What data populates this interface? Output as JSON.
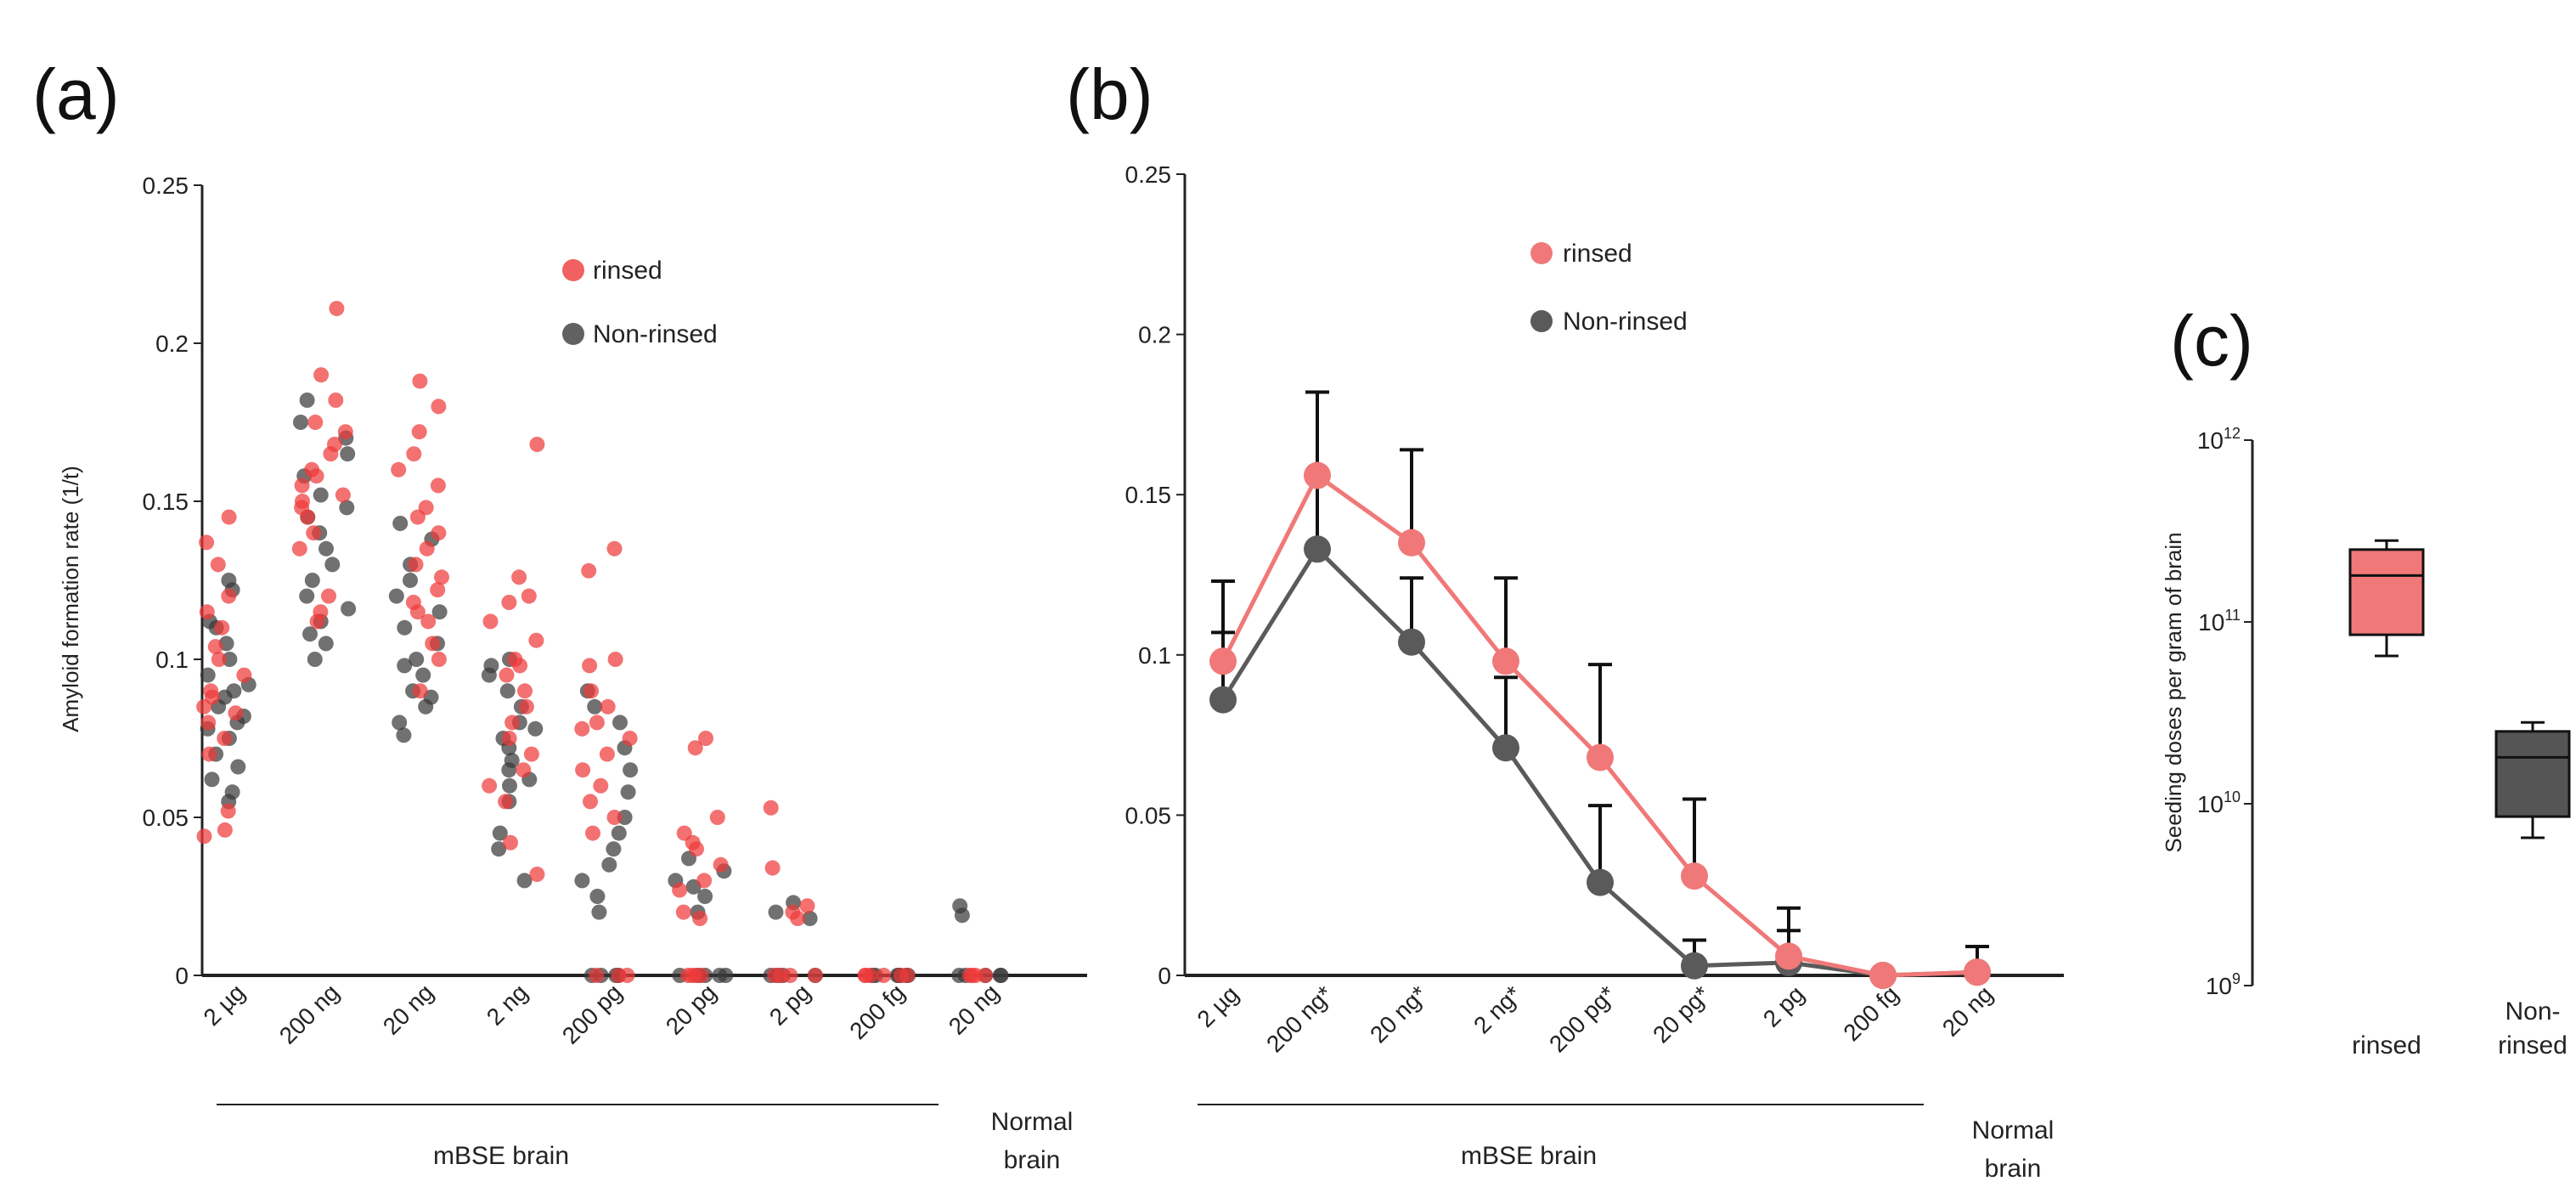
{
  "colors": {
    "rinsed": "#ee3a3a",
    "rinsed_line": "#f07878",
    "nonrinsed": "#3a3a3a",
    "nonrinsed_line": "#5a5a5a",
    "box_rinsed": "#f07878",
    "box_nonrinsed": "#555555"
  },
  "panel_a": {
    "letter": "(a)",
    "ylabel": "Amyloid formation rate (1/t)",
    "yticks": [
      "0",
      "0.05",
      "0.1",
      "0.15",
      "0.2",
      "0.25"
    ],
    "categories": [
      "2 µg",
      "200 ng",
      "20 ng",
      "2 ng",
      "200 pg",
      "20 pg",
      "2 pg",
      "200 fg",
      "20 ng"
    ],
    "group_mbse": "mBSE brain",
    "group_normal_1": "Normal",
    "group_normal_2": "brain",
    "legend": {
      "rinsed": "rinsed",
      "nonrinsed": "Non-rinsed"
    }
  },
  "panel_b": {
    "letter": "(b)",
    "yticks": [
      "0",
      "0.05",
      "0.1",
      "0.15",
      "0.2",
      "0.25"
    ],
    "categories": [
      "2 µg",
      "200 ng*",
      "20 ng*",
      "2 ng*",
      "200 pg*",
      "20 pg*",
      "2 pg",
      "200 fg",
      "20 ng"
    ],
    "group_mbse": "mBSE brain",
    "group_normal_1": "Normal",
    "group_normal_2": "brain",
    "legend": {
      "rinsed": "rinsed",
      "nonrinsed": "Non-rinsed"
    }
  },
  "panel_c": {
    "letter": "(c)",
    "ylabel": "Seeding doses per gram of  brain",
    "ytick_base": "10",
    "ytick_exps": [
      "9",
      "10",
      "11",
      "12"
    ],
    "cat_rinsed": "rinsed",
    "cat_nonrinsed_1": "Non-",
    "cat_nonrinsed_2": "rinsed"
  },
  "chart_data": [
    {
      "type": "scatter",
      "panel": "a",
      "ylabel": "Amyloid formation rate (1/t)",
      "ylim": [
        0,
        0.25
      ],
      "categories": [
        "2 µg",
        "200 ng",
        "20 ng",
        "2 ng",
        "200 pg",
        "20 pg",
        "2 pg",
        "200 fg",
        "20 ng"
      ],
      "series": [
        {
          "name": "rinsed",
          "points": [
            [
              [
                0.145,
                0.137,
                0.13,
                0.12,
                0.115,
                0.11,
                0.104,
                0.1,
                0.095,
                0.09,
                0.088,
                0.085,
                0.083,
                0.08,
                0.075,
                0.07,
                0.052,
                0.046,
                0.044
              ]
            ],
            [
              [
                0.211,
                0.19,
                0.182,
                0.175,
                0.172,
                0.168,
                0.165,
                0.16,
                0.158,
                0.155,
                0.152,
                0.15,
                0.148,
                0.145,
                0.14,
                0.135,
                0.12,
                0.115,
                0.112
              ]
            ],
            [
              [
                0.188,
                0.18,
                0.172,
                0.165,
                0.16,
                0.155,
                0.148,
                0.145,
                0.14,
                0.135,
                0.13,
                0.126,
                0.122,
                0.118,
                0.115,
                0.112,
                0.105,
                0.1,
                0.09
              ]
            ],
            [
              [
                0.168,
                0.126,
                0.12,
                0.118,
                0.112,
                0.106,
                0.1,
                0.098,
                0.095,
                0.09,
                0.085,
                0.08,
                0.075,
                0.07,
                0.065,
                0.06,
                0.055,
                0.042,
                0.032
              ]
            ],
            [
              [
                0.135,
                0.128,
                0.1,
                0.098,
                0.09,
                0.085,
                0.08,
                0.078,
                0.075,
                0.07,
                0.065,
                0.06,
                0.055,
                0.05,
                0.045,
                0.0,
                0.0,
                0.0
              ]
            ],
            [
              [
                0.075,
                0.072,
                0.05,
                0.045,
                0.042,
                0.04,
                0.035,
                0.03,
                0.027,
                0.02,
                0.018,
                0.0,
                0.0,
                0.0,
                0.0
              ]
            ],
            [
              [
                0.053,
                0.034,
                0.022,
                0.02,
                0.018,
                0.0,
                0.0,
                0.0,
                0.0
              ]
            ],
            [
              [
                0.0,
                0.0,
                0.0,
                0.0,
                0.0,
                0.0
              ]
            ],
            [
              [
                0.0,
                0.0,
                0.0,
                0.0
              ]
            ]
          ]
        },
        {
          "name": "Non-rinsed",
          "points": [
            [
              [
                0.125,
                0.122,
                0.112,
                0.11,
                0.105,
                0.1,
                0.095,
                0.092,
                0.09,
                0.088,
                0.085,
                0.082,
                0.08,
                0.078,
                0.075,
                0.07,
                0.066,
                0.062,
                0.058,
                0.055
              ]
            ],
            [
              [
                0.182,
                0.175,
                0.17,
                0.165,
                0.158,
                0.152,
                0.148,
                0.145,
                0.14,
                0.135,
                0.13,
                0.125,
                0.12,
                0.116,
                0.112,
                0.108,
                0.105,
                0.1
              ]
            ],
            [
              [
                0.143,
                0.138,
                0.13,
                0.125,
                0.12,
                0.115,
                0.11,
                0.105,
                0.1,
                0.098,
                0.095,
                0.09,
                0.088,
                0.085,
                0.08,
                0.076
              ]
            ],
            [
              [
                0.1,
                0.098,
                0.095,
                0.09,
                0.085,
                0.08,
                0.078,
                0.075,
                0.072,
                0.068,
                0.065,
                0.062,
                0.06,
                0.055,
                0.045,
                0.04,
                0.03
              ]
            ],
            [
              [
                0.09,
                0.085,
                0.08,
                0.072,
                0.065,
                0.058,
                0.05,
                0.045,
                0.04,
                0.035,
                0.03,
                0.025,
                0.02,
                0.0,
                0.0,
                0.0,
                0.0
              ]
            ],
            [
              [
                0.037,
                0.033,
                0.03,
                0.028,
                0.025,
                0.02,
                0.0,
                0.0,
                0.0,
                0.0,
                0.0
              ]
            ],
            [
              [
                0.023,
                0.02,
                0.018,
                0.0,
                0.0,
                0.0,
                0.0
              ]
            ],
            [
              [
                0.0,
                0.0,
                0.0,
                0.0,
                0.0,
                0.0,
                0.0
              ]
            ],
            [
              [
                0.022,
                0.019,
                0.0,
                0.0,
                0.0,
                0.0,
                0.0
              ]
            ]
          ]
        }
      ],
      "legend": [
        "rinsed",
        "Non-rinsed"
      ],
      "xgroups": [
        "mBSE brain",
        "Normal brain"
      ]
    },
    {
      "type": "line",
      "panel": "b",
      "ylim": [
        0,
        0.25
      ],
      "categories": [
        "2 µg",
        "200 ng*",
        "20 ng*",
        "2 ng*",
        "200 pg*",
        "20 pg*",
        "2 pg",
        "200 fg",
        "20 ng"
      ],
      "series": [
        {
          "name": "rinsed",
          "values": [
            0.098,
            0.156,
            0.135,
            0.098,
            0.068,
            0.031,
            0.006,
            0.0,
            0.001
          ],
          "errors": [
            0.025,
            0.026,
            0.029,
            0.026,
            0.029,
            0.024,
            0.008,
            0.0,
            0.008
          ]
        },
        {
          "name": "Non-rinsed",
          "values": [
            0.086,
            0.133,
            0.104,
            0.071,
            0.029,
            0.003,
            0.004,
            0.0,
            0.001
          ],
          "errors": [
            0.021,
            0.049,
            0.02,
            0.022,
            0.024,
            0.008,
            0.017,
            0.0,
            0.008
          ]
        }
      ],
      "legend": [
        "rinsed",
        "Non-rinsed"
      ],
      "xgroups": [
        "mBSE brain",
        "Normal brain"
      ]
    },
    {
      "type": "box",
      "panel": "c",
      "ylabel": "Seeding doses per gram of  brain",
      "yscale": "log",
      "ylim": [
        1000000000.0,
        1000000000000.0
      ],
      "categories": [
        "rinsed",
        "Non-rinsed"
      ],
      "boxes": [
        {
          "name": "rinsed",
          "min": 65000000000.0,
          "q1": 85000000000.0,
          "median": 180000000000.0,
          "q3": 250000000000.0,
          "max": 280000000000.0
        },
        {
          "name": "Non-rinsed",
          "min": 6500000000.0,
          "q1": 8500000000.0,
          "median": 18000000000.0,
          "q3": 25000000000.0,
          "max": 28000000000.0
        }
      ]
    }
  ]
}
